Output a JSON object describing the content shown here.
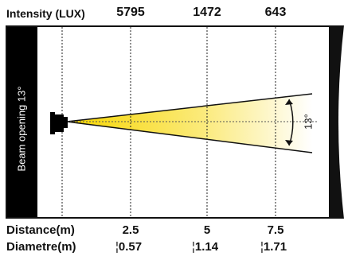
{
  "header": {
    "intensity_label": "Intensity (LUX)",
    "intensity_values": [
      "5795",
      "1472",
      "643"
    ]
  },
  "beam": {
    "side_label": "Beam opening 13°",
    "angle_label": "13°",
    "fill_start_color": "#f7d600",
    "fill_end_color": "#ffffff"
  },
  "footer": {
    "distance_label": "Distance(m)",
    "distance_values": [
      "2.5",
      "5",
      "7.5"
    ],
    "diameter_label": "Diametre(m)",
    "diameter_values": [
      "0.57",
      "1.14",
      "1.71"
    ]
  }
}
